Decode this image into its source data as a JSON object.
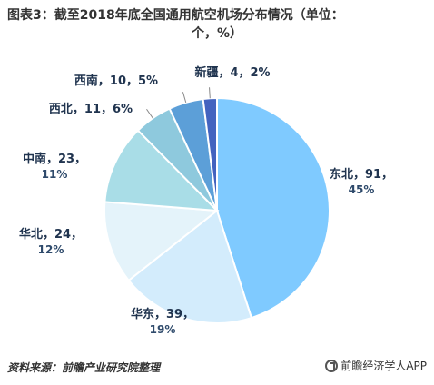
{
  "title": {
    "line1": "图表3：截至2018年底全国通用航空机场分布情况（单位：",
    "line2": "个，%）"
  },
  "footer": {
    "source": "资料来源：前瞻产业研究院整理",
    "brand": "前瞻经济学人APP",
    "brand_icon": "brand-logo-icon"
  },
  "chart_data": {
    "type": "pie",
    "title": "图表3：截至2018年底全国通用航空机场分布情况（单位：个，%）",
    "slices": [
      {
        "name": "东北",
        "value": 91,
        "percent": "45%",
        "color": "#7fcaff"
      },
      {
        "name": "华东",
        "value": 39,
        "percent": "19%",
        "color": "#d3ecfc"
      },
      {
        "name": "华北",
        "value": 24,
        "percent": "12%",
        "color": "#e4f3fa"
      },
      {
        "name": "中南",
        "value": 23,
        "percent": "11%",
        "color": "#a9dde7"
      },
      {
        "name": "西北",
        "value": 11,
        "percent": "6%",
        "color": "#8ec9dd"
      },
      {
        "name": "西南",
        "value": 10,
        "percent": "5%",
        "color": "#5c9fd8"
      },
      {
        "name": "新疆",
        "value": 4,
        "percent": "2%",
        "color": "#4363bf"
      }
    ],
    "labels": [
      {
        "line1": "东北，91，",
        "line2": "45%"
      },
      {
        "line1": "华东，39，",
        "line2": "19%"
      },
      {
        "line1": "华北，24，",
        "line2": "12%"
      },
      {
        "line1": "中南，23，",
        "line2": "11%"
      },
      {
        "line1": "西北，11，6%",
        "line2": ""
      },
      {
        "line1": "西南，10，5%",
        "line2": ""
      },
      {
        "line1": "新疆，4，2%",
        "line2": ""
      }
    ]
  }
}
